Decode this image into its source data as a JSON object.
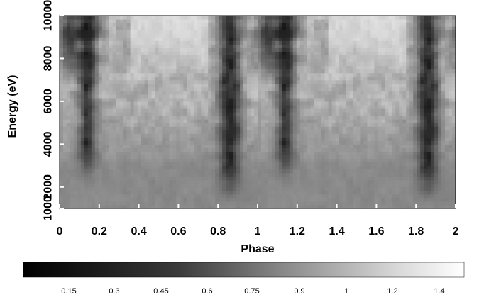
{
  "chart_data": {
    "type": "heatmap",
    "title": "",
    "xlabel": "Phase",
    "ylabel": "Energy (eV)",
    "xlim": [
      0,
      2
    ],
    "ylim": [
      1000,
      10000
    ],
    "x_ticks": [
      "0",
      "0.2",
      "0.4",
      "0.6",
      "0.8",
      "1",
      "1.2",
      "1.4",
      "1.6",
      "1.8",
      "2"
    ],
    "y_ticks": [
      "1000",
      "2000",
      "4000",
      "6000",
      "8000",
      "10000"
    ],
    "y_tick_values": [
      1000,
      2000,
      4000,
      6000,
      8000,
      10000
    ],
    "colormap": "greyscale, black (low) to white (high)",
    "colorbar": {
      "range": [
        0.1,
        1.6
      ],
      "ticks": [
        "0.15",
        "0.3",
        "0.45",
        "0.6",
        "0.75",
        "0.9",
        "1",
        "1.2",
        "1.4"
      ],
      "tick_values": [
        0.15,
        0.3,
        0.45,
        0.6,
        0.75,
        0.9,
        1.0,
        1.2,
        1.4
      ]
    },
    "period_in_phase": 1,
    "dark_features": [
      {
        "phase_center": 0.14,
        "energy_min": 3000,
        "energy_max": 10000,
        "intensity": 0.15
      },
      {
        "phase_center": 0.86,
        "energy_min": 2000,
        "energy_max": 10000,
        "intensity": 0.2
      },
      {
        "phase_center": 0.05,
        "energy_min": 7500,
        "energy_max": 10000,
        "intensity": 0.3
      }
    ],
    "bright_region": {
      "phase_min": 0.4,
      "phase_max": 0.7,
      "energy_min": 7000,
      "energy_max": 10000,
      "intensity": 1.4
    },
    "low_energy_level": 0.85
  }
}
